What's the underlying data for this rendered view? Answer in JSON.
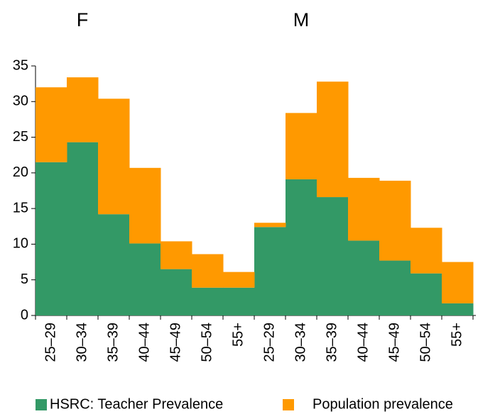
{
  "chart_data": {
    "type": "bar",
    "stacked": true,
    "panels": [
      "F",
      "M"
    ],
    "categories": [
      "25–29",
      "30–34",
      "35–39",
      "40–44",
      "45–49",
      "50–54",
      "55+",
      "25–29",
      "30–34",
      "35–39",
      "40–44",
      "45–49",
      "50–54",
      "55+"
    ],
    "series": [
      {
        "name": "HSRC: Teacher Prevalence",
        "color": "#339966",
        "values": [
          21.5,
          24.3,
          14.2,
          10.1,
          6.5,
          3.9,
          3.9,
          12.4,
          19.1,
          16.6,
          10.5,
          7.7,
          5.9,
          1.7
        ]
      },
      {
        "name": "Population prevalence",
        "color": "#ff9900",
        "values": [
          10.5,
          9.1,
          16.2,
          10.6,
          3.9,
          4.7,
          2.2,
          0.6,
          9.3,
          16.2,
          8.8,
          11.2,
          6.4,
          5.8
        ]
      }
    ],
    "ylim": [
      0,
      35
    ],
    "yticks": [
      0,
      5,
      10,
      15,
      20,
      25,
      30,
      35
    ]
  }
}
